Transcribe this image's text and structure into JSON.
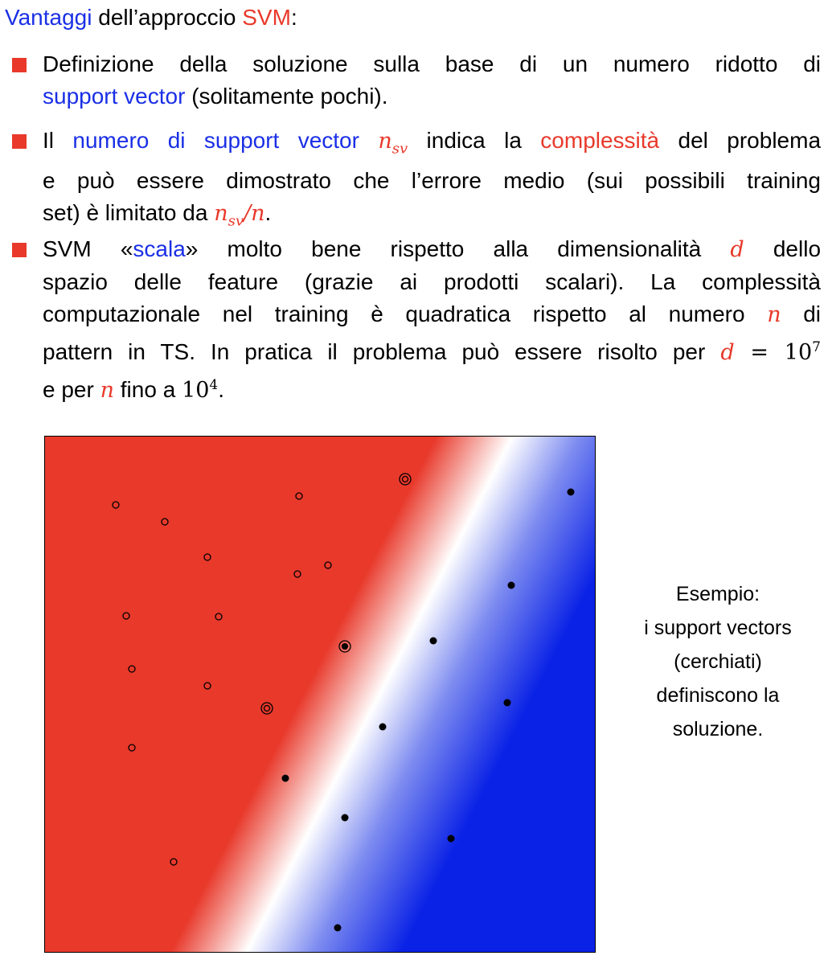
{
  "heading": {
    "prefix_blue": "Vantaggi",
    "middle": " dell’approccio ",
    "suffix_red": "SVM",
    "tail": ":"
  },
  "bullets": [
    {
      "line1": "Definizione della soluzione sulla base di un numero ridotto di",
      "line2_blue": "support vector",
      "line2_rest": " (solitamente pochi)."
    },
    {
      "l1_a": "Il ",
      "l1_blue": "numero di support vector",
      "l1_math_base": "n",
      "l1_math_sub": "sv",
      "l1_b": " indica la ",
      "l1_red": "complessità",
      "l1_c": " del problema",
      "line2": "e può essere dimostrato che l’errore medio (sui possibili training",
      "l3_a": "set) è limitato da ",
      "l3_math_base": "n",
      "l3_math_sub": "sv",
      "l3_math_div": "/n",
      "l3_end": "."
    },
    {
      "l1_a": "SVM «",
      "l1_blue": "scala",
      "l1_b": "» molto bene rispetto alla dimensionalità ",
      "l1_math": "d",
      "l1_c": " dello",
      "line2": "spazio delle feature (grazie ai prodotti scalari). La complessità",
      "l3_a": "computazionale nel training è quadratica rispetto al numero ",
      "l3_math": "n",
      "l3_b": " di",
      "l4_a": "pattern in TS. In pratica il problema può essere risolto per ",
      "l4_math_d": "d",
      "l4_eq": " = 10",
      "l4_sup": "7",
      "l5_a": "e per ",
      "l5_math_n": "n",
      "l5_b": " fino a ",
      "l5_base": "10",
      "l5_sup": "4",
      "l5_end": "."
    }
  ],
  "caption": {
    "line1": "Esempio:",
    "line2": "i support vectors",
    "line3": "(cerchiati)",
    "line4": "definiscono la",
    "line5": "soluzione."
  },
  "colors": {
    "accent_blue": "#1a2fe6",
    "accent_red": "#e8392b",
    "class_red_region": "#e8392b",
    "class_blue_region": "#0a22e6"
  }
}
